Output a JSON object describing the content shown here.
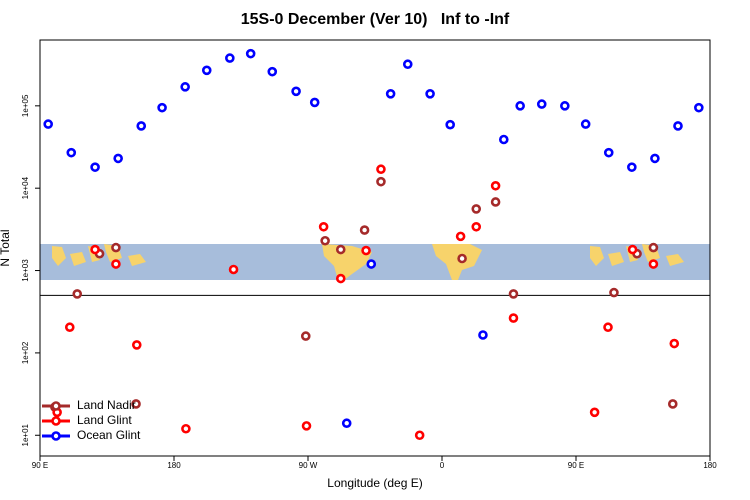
{
  "chart_data": {
    "type": "scatter",
    "title": "15S-0 December (Ver 10)   Inf to -Inf",
    "x_label": "Longitude (deg E)",
    "y_label": "N Total",
    "log_y": true,
    "legend": "bottom-left",
    "xlim": [
      90,
      540
    ],
    "xticks": [
      {
        "value": 90,
        "label": "90 E"
      },
      180,
      {
        "value": 270,
        "label": "90 W"
      },
      {
        "value": 360,
        "label": "0"
      },
      {
        "value": 450,
        "label": "90 E"
      },
      {
        "value": 540,
        "label": "180"
      }
    ],
    "ylim": [
      5.6,
      630000
    ],
    "yticks": [
      {
        "value": 10,
        "label": "1e+01"
      },
      {
        "value": 100,
        "label": "1e+02"
      },
      {
        "value": 1000,
        "label": "1e+03"
      },
      {
        "value": 10000,
        "label": "1e+04"
      },
      {
        "value": 100000,
        "label": "1e+05"
      }
    ],
    "hline": 500,
    "series": [
      {
        "name": "Land Nadir",
        "color": "#a52a2a",
        "x": [
          100,
          115,
          130,
          141,
          154.5,
          268.5,
          281.5,
          292,
          308,
          319,
          373.5,
          383,
          396,
          408,
          475.5,
          491,
          502,
          515
        ],
        "values": [
          22,
          520,
          1600,
          1900,
          24,
          160,
          2300,
          1800,
          3100,
          12000,
          1400,
          5600,
          6800,
          520,
          540,
          1600,
          1900,
          24
        ]
      },
      {
        "name": "Land Glint",
        "color": "#ff0000",
        "x": [
          101.5,
          110,
          127,
          141,
          155,
          188,
          220,
          269,
          280.5,
          292,
          309,
          319,
          345,
          372.5,
          383,
          396,
          408,
          462.5,
          471.5,
          488,
          502,
          516
        ],
        "values": [
          19,
          205,
          1800,
          1200,
          125,
          12,
          1030,
          13,
          3400,
          800,
          1750,
          17000,
          10,
          2600,
          3400,
          10700,
          265,
          19,
          205,
          1800,
          1200,
          130
        ]
      },
      {
        "name": "Ocean Glint",
        "color": "#0000ff",
        "x": [
          95.5,
          111,
          127,
          142.5,
          158,
          172,
          187.5,
          202,
          217.5,
          231.5,
          246,
          262,
          274.5,
          296,
          312.5,
          325.5,
          337,
          352,
          365.5,
          387.5,
          401.5,
          412.5,
          427,
          442.5,
          456.5,
          472,
          487.5,
          503,
          518.5,
          532.5
        ],
        "values": [
          60000,
          27000,
          18000,
          23000,
          57000,
          95000,
          170000,
          270000,
          380000,
          430000,
          260000,
          150000,
          110000,
          14,
          1200,
          140000,
          320000,
          140000,
          59000,
          165,
          39000,
          100000,
          105000,
          100000,
          60000,
          27000,
          18000,
          23000,
          57000,
          95000
        ]
      }
    ]
  }
}
